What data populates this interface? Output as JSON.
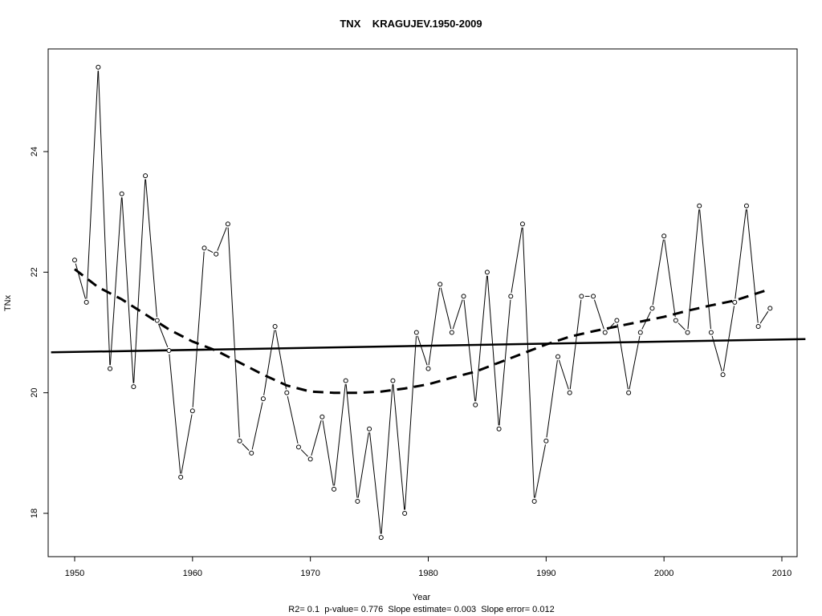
{
  "chart_data": {
    "type": "line",
    "title": "TNX    KRAGUJEV.1950-2009",
    "xlabel": "Year",
    "ylabel": "TNx",
    "footnote": "R2= 0.1  p-value= 0.776  Slope estimate= 0.003  Slope error= 0.012",
    "xlim": [
      1948,
      2012
    ],
    "ylim": [
      17.3,
      25.7
    ],
    "x_ticks": [
      1950,
      1960,
      1970,
      1980,
      1990,
      2000,
      2010
    ],
    "y_ticks": [
      18,
      20,
      22,
      24
    ],
    "grid": false,
    "x": [
      1950,
      1951,
      1952,
      1953,
      1954,
      1955,
      1956,
      1957,
      1958,
      1959,
      1960,
      1961,
      1962,
      1963,
      1964,
      1965,
      1966,
      1967,
      1968,
      1969,
      1970,
      1971,
      1972,
      1973,
      1974,
      1975,
      1976,
      1977,
      1978,
      1979,
      1980,
      1981,
      1982,
      1983,
      1984,
      1985,
      1986,
      1987,
      1988,
      1989,
      1990,
      1991,
      1992,
      1993,
      1994,
      1995,
      1996,
      1997,
      1998,
      1999,
      2000,
      2001,
      2002,
      2003,
      2004,
      2005,
      2006,
      2007,
      2008,
      2009
    ],
    "series": [
      {
        "values": [
          22.2,
          21.5,
          25.4,
          20.4,
          23.3,
          20.1,
          23.6,
          21.2,
          20.7,
          18.6,
          19.7,
          22.4,
          22.3,
          22.8,
          19.2,
          19.0,
          19.9,
          21.1,
          20.0,
          19.1,
          18.9,
          19.6,
          18.4,
          20.2,
          18.2,
          19.4,
          17.6,
          20.2,
          18.0,
          21.0,
          20.4,
          21.8,
          21.0,
          21.6,
          19.8,
          22.0,
          19.4,
          21.6,
          22.8,
          18.2,
          19.2,
          20.6,
          20.0,
          21.6,
          21.6,
          21.0,
          21.2,
          20.0,
          21.0,
          21.4,
          22.6,
          21.2,
          21.0,
          23.1,
          21.0,
          20.3,
          21.5,
          23.1,
          21.1,
          21.4
        ]
      }
    ],
    "linear_trend": {
      "x": [
        1948,
        2012
      ],
      "y": [
        20.67,
        20.89
      ]
    },
    "smooth_trend": {
      "x": [
        1950,
        1952,
        1954,
        1956,
        1958,
        1960,
        1962,
        1964,
        1966,
        1968,
        1970,
        1972,
        1974,
        1976,
        1978,
        1980,
        1982,
        1984,
        1986,
        1988,
        1990,
        1992,
        1994,
        1996,
        1998,
        2000,
        2002,
        2004,
        2006,
        2009
      ],
      "y": [
        22.05,
        21.75,
        21.55,
        21.3,
        21.05,
        20.85,
        20.7,
        20.5,
        20.3,
        20.12,
        20.02,
        20.0,
        20.0,
        20.02,
        20.07,
        20.14,
        20.25,
        20.35,
        20.5,
        20.65,
        20.8,
        20.93,
        21.02,
        21.1,
        21.18,
        21.26,
        21.36,
        21.45,
        21.53,
        21.72
      ]
    }
  }
}
